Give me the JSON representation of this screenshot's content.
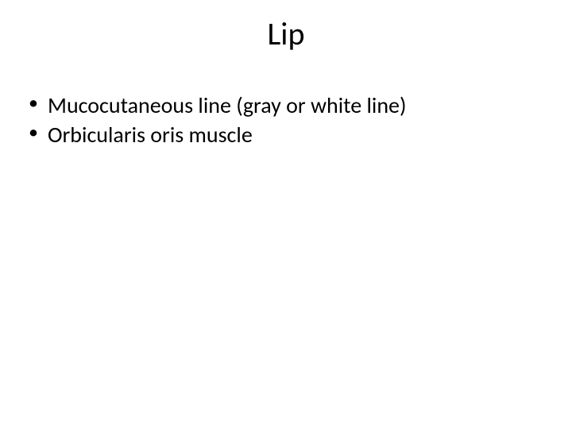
{
  "slide": {
    "title": "Lip",
    "bullets": [
      "Mucocutaneous line (gray or white line)",
      "Orbicularis oris muscle"
    ],
    "title_fontsize": 40,
    "body_fontsize": 28,
    "title_color": "#000000",
    "text_color": "#000000",
    "background_color": "#ffffff",
    "font_family": "Calibri"
  }
}
